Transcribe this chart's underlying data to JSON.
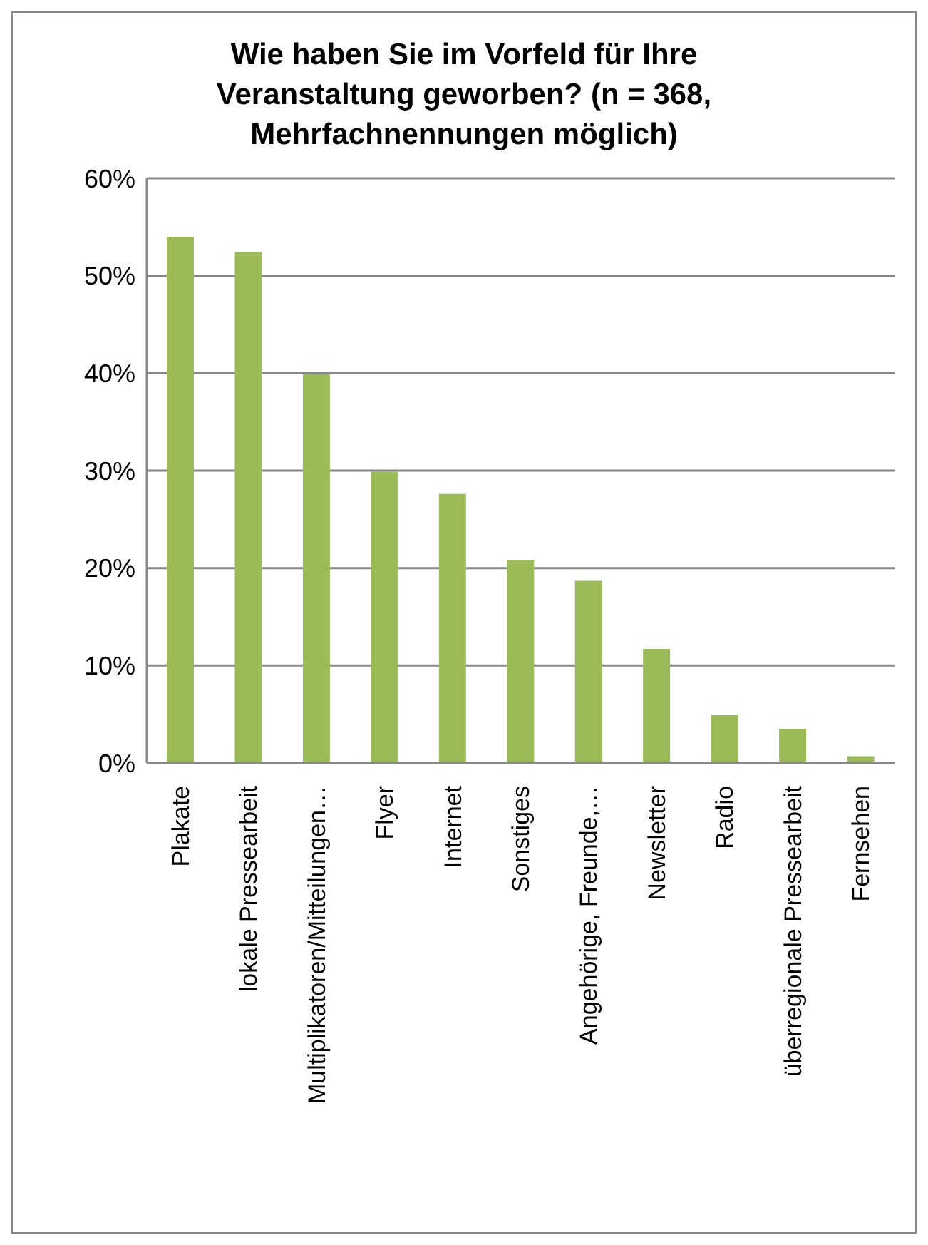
{
  "chart_data": {
    "type": "bar",
    "title": "Wie haben Sie im Vorfeld für Ihre Veranstaltung geworben? (n = 368, Mehrfachnennungen möglich)",
    "categories": [
      "Plakate",
      "lokale Pressearbeit",
      "Multiplikatoren/Mitteilungen…",
      "Flyer",
      "Internet",
      "Sonstiges",
      "Angehörige, Freunde,…",
      "Newsletter",
      "Radio",
      "überregionale Pressearbeit",
      "Fernsehen"
    ],
    "values": [
      54.0,
      52.4,
      39.9,
      29.9,
      27.6,
      20.8,
      18.7,
      11.7,
      4.9,
      3.5,
      0.7
    ],
    "color": "#9bbb59",
    "ylim": [
      0,
      60
    ],
    "yticks": [
      {
        "value": 0,
        "label": "0%"
      },
      {
        "value": 10,
        "label": "10%"
      },
      {
        "value": 20,
        "label": "20%"
      },
      {
        "value": 30,
        "label": "30%"
      },
      {
        "value": 40,
        "label": "40%"
      },
      {
        "value": 50,
        "label": "50%"
      },
      {
        "value": 60,
        "label": "60%"
      }
    ],
    "grid": "y",
    "legend": false
  }
}
